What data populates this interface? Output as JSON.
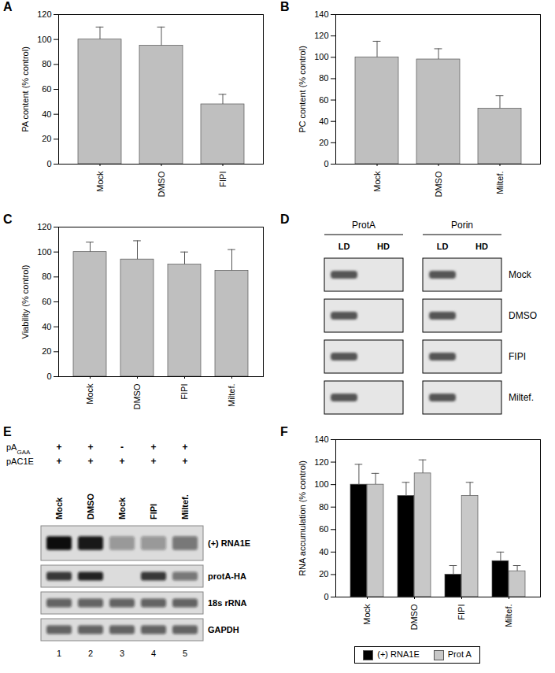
{
  "chart_data": [
    {
      "title": "A",
      "type": "bar",
      "categories": [
        "Mock",
        "DMSO",
        "FIPI"
      ],
      "values": [
        100,
        95,
        48
      ],
      "errors": [
        10,
        15,
        8
      ],
      "y_label": "PA content (% control)",
      "ylim": [
        0,
        120
      ],
      "yticks": [
        0,
        20,
        40,
        60,
        80,
        100,
        120
      ],
      "color": "#bfbfbf"
    },
    {
      "title": "B",
      "type": "bar",
      "categories": [
        "Mock",
        "DMSO",
        "Miltef."
      ],
      "values": [
        100,
        98,
        52
      ],
      "errors": [
        15,
        10,
        12
      ],
      "y_label": "PC content (% control)",
      "ylim": [
        0,
        140
      ],
      "yticks": [
        0,
        20,
        40,
        60,
        80,
        100,
        120,
        140
      ],
      "color": "#bfbfbf"
    },
    {
      "title": "C",
      "type": "bar",
      "categories": [
        "Mock",
        "DMSO",
        "FIPI",
        "Miltef."
      ],
      "values": [
        100,
        94,
        90,
        85
      ],
      "errors": [
        8,
        15,
        10,
        17
      ],
      "y_label": "Viability (% control)",
      "ylim": [
        0,
        120
      ],
      "yticks": [
        0,
        20,
        40,
        60,
        80,
        100,
        120
      ],
      "color": "#bfbfbf"
    },
    {
      "title": "F",
      "type": "bar",
      "categories": [
        "Mock",
        "DMSO",
        "FIPI",
        "Miltef."
      ],
      "series": [
        {
          "name": "(+) RNA1E",
          "color": "#000000",
          "values": [
            100,
            90,
            20,
            32
          ],
          "errors": [
            18,
            12,
            8,
            8
          ]
        },
        {
          "name": "Prot A",
          "color": "#c8c8c8",
          "values": [
            100,
            110,
            90,
            23
          ],
          "errors": [
            10,
            12,
            12,
            5
          ]
        }
      ],
      "y_label": "RNA accumulation (% control)",
      "ylim": [
        0,
        140
      ],
      "yticks": [
        0,
        20,
        40,
        60,
        80,
        100,
        120,
        140
      ],
      "legend": "bottom"
    }
  ],
  "panel_D": {
    "title": "D",
    "groups": [
      "ProtA",
      "Porin"
    ],
    "lanes": [
      "LD",
      "HD"
    ],
    "rows": [
      "Mock",
      "DMSO",
      "FIPI",
      "Miltef."
    ]
  },
  "panel_E": {
    "title": "E",
    "plasmids": [
      {
        "label": "pA",
        "subscript": "GAA",
        "signs": [
          "+",
          "+",
          "-",
          "+",
          "+"
        ]
      },
      {
        "label": "pAC1E",
        "signs": [
          "+",
          "+",
          "+",
          "+",
          "+"
        ]
      }
    ],
    "lanes": [
      "Mock",
      "DMSO",
      "Mock",
      "FIPI",
      "Miltef."
    ],
    "lane_numbers": [
      1,
      2,
      3,
      4,
      5
    ],
    "blots": [
      {
        "label": "(+) RNA1E",
        "intensity": [
          1,
          0.95,
          0.35,
          0.35,
          0.5
        ]
      },
      {
        "label": "protA-HA",
        "intensity": [
          0.8,
          0.9,
          0,
          0.8,
          0.5
        ]
      },
      {
        "label": "18s rRNA",
        "intensity": [
          0.6,
          0.6,
          0.6,
          0.6,
          0.6
        ]
      },
      {
        "label": "GAPDH",
        "intensity": [
          0.6,
          0.6,
          0.6,
          0.6,
          0.6
        ]
      }
    ]
  }
}
